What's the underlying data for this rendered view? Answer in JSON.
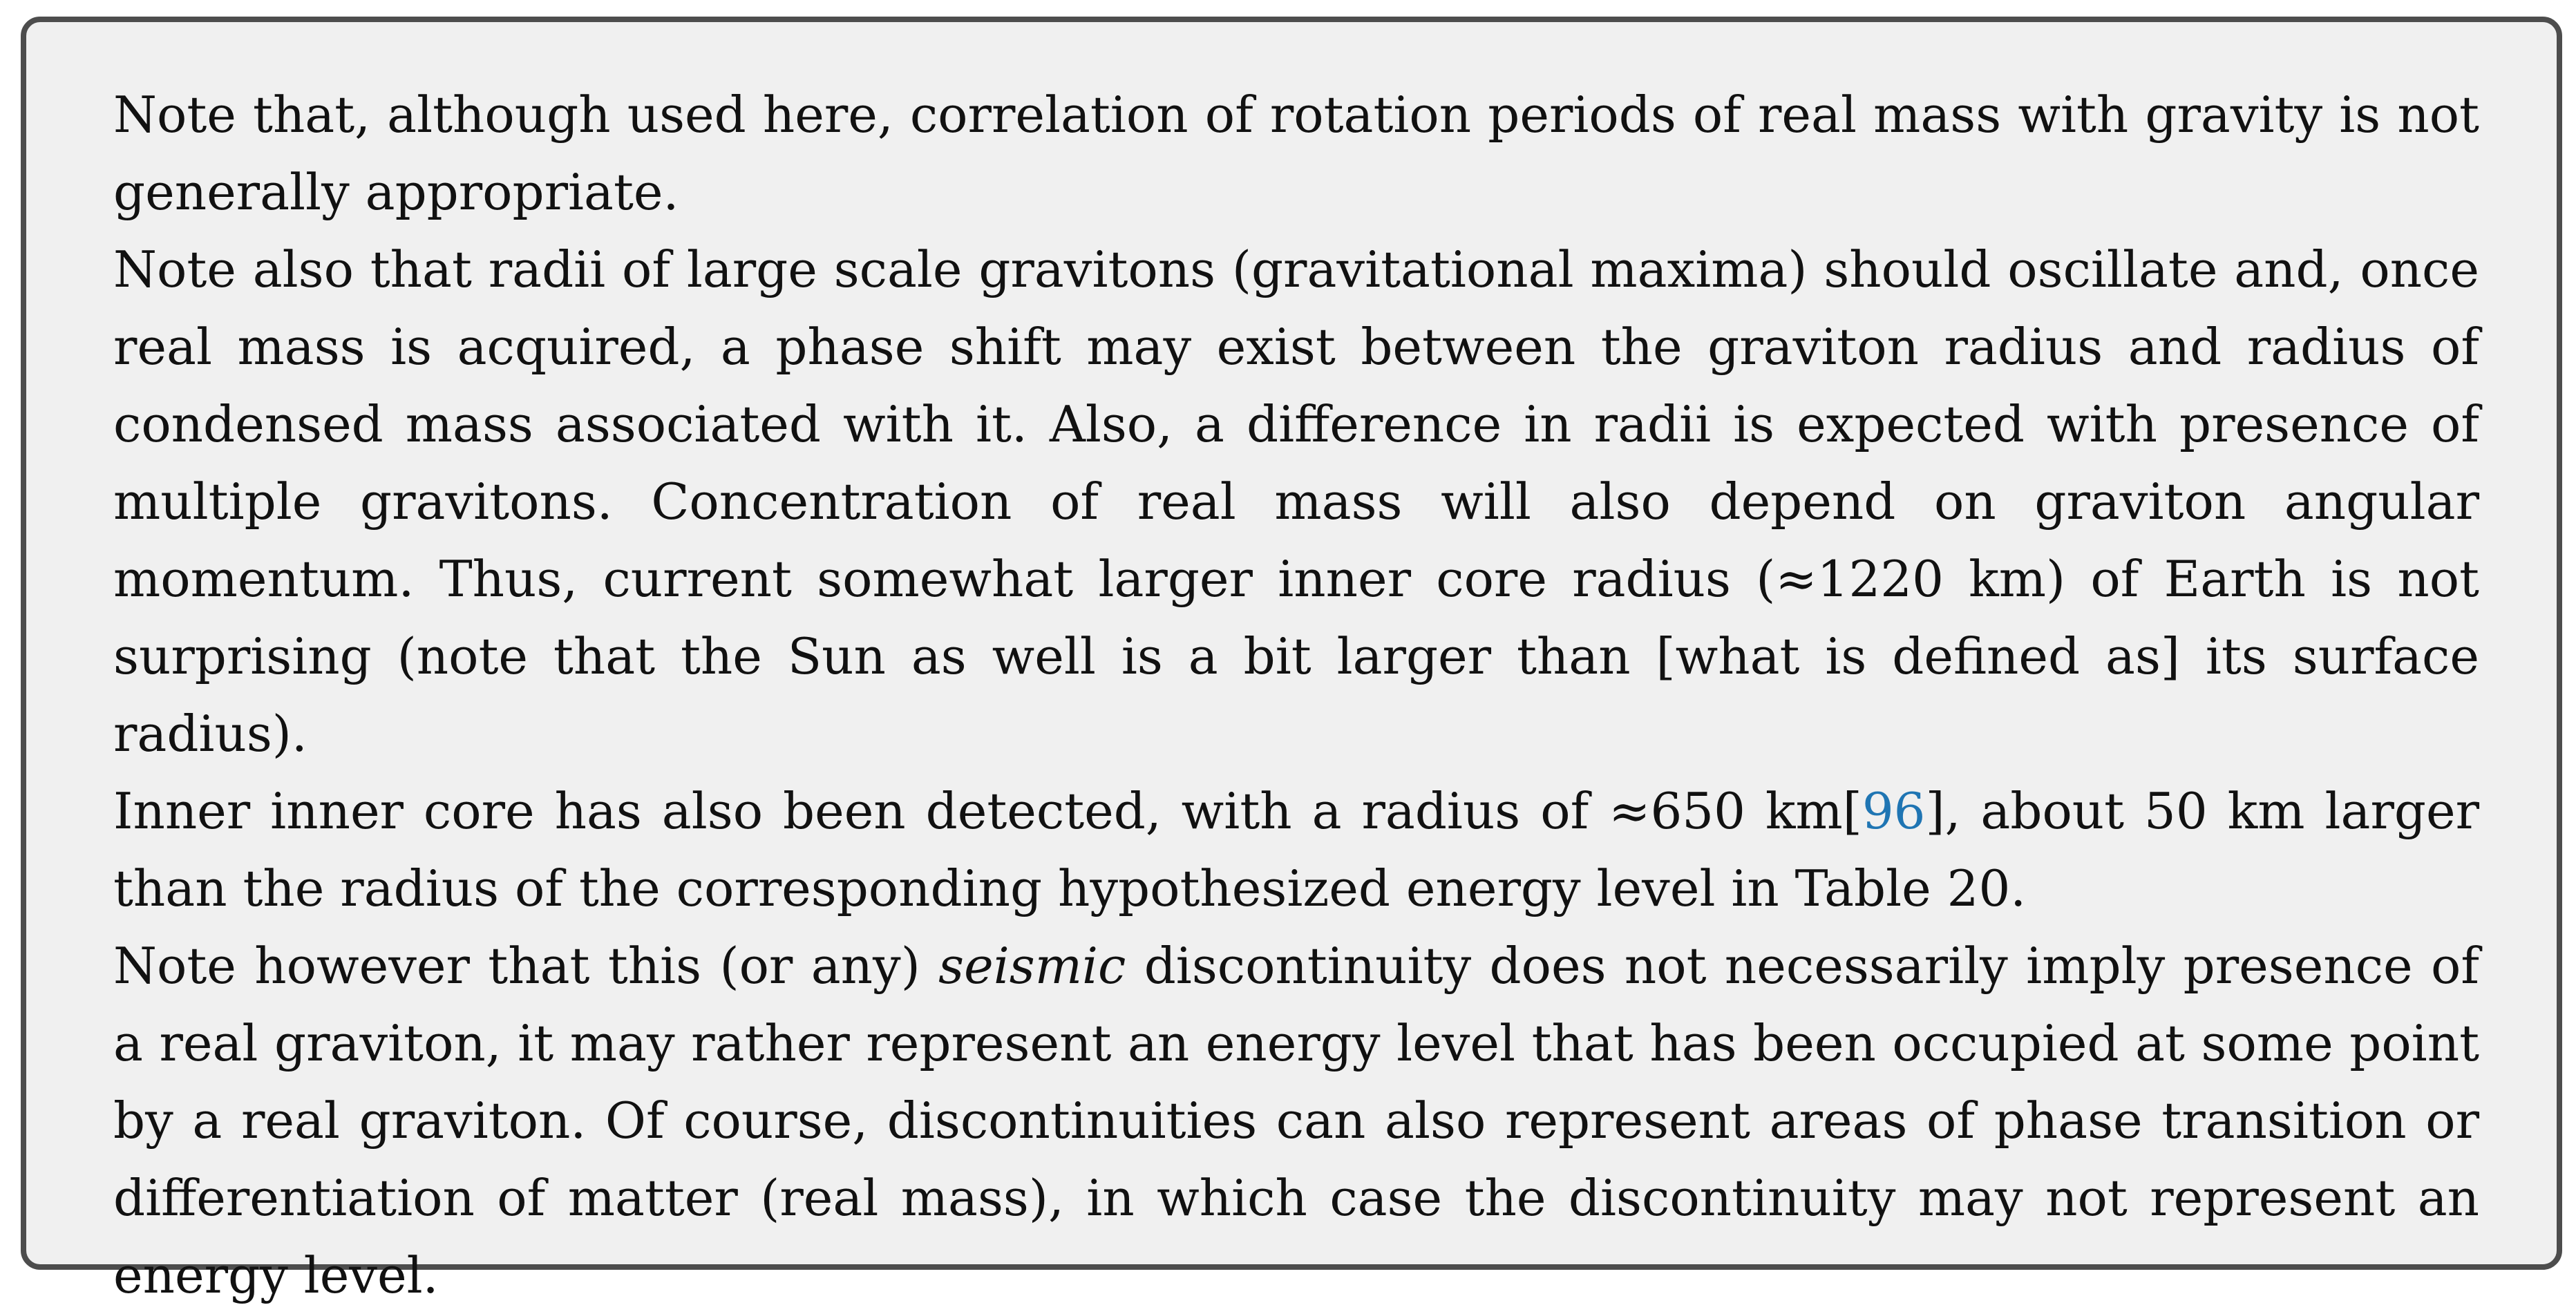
{
  "note": {
    "paragraphs": [
      {
        "text": "Note that, although used here, correlation of rotation periods of real mass with gravity is not generally appropriate."
      },
      {
        "text": "Note also that radii of large scale gravitons (gravitational maxima) should oscillate and, once real mass is acquired, a phase shift may exist between the graviton radius and radius of condensed mass associated with it. Also, a difference in radii is expected with presence of multiple gravitons. Concentration of real mass will also depend on graviton angular momentum. Thus, current somewhat larger inner core radius (≈1220 km) of Earth is not surprising (note that the Sun as well is a bit larger than [what is defined as] its surface radius)."
      },
      {
        "before": "Inner inner core has also been detected, with a radius of ≈650 km[",
        "citation": "96",
        "after": "], about 50 km larger than the radius of the corresponding hypothesized energy level in Table 20."
      },
      {
        "before": "Note however that this (or any) ",
        "emphasis": "seismic",
        "after": " discontinuity does not necessarily imply presence of a real graviton, it may rather represent an energy level that has been occupied at some point by a real graviton. Of course, discontinuities can also represent areas of phase transition or differentiation of matter (real mass), in which case the discontinuity may not represent an energy level."
      }
    ]
  }
}
